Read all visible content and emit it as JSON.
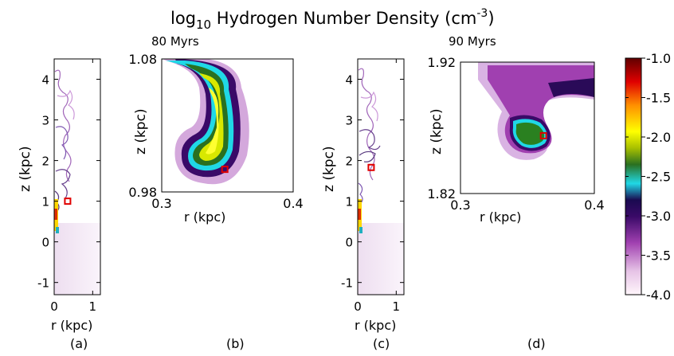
{
  "figure": {
    "title_base": "log",
    "title_sub": "10",
    "title_rest": " Hydrogen Number Density (cm",
    "title_sup": "-3",
    "title_close": ")"
  },
  "colorbar": {
    "ticks": [
      "-1.0",
      "-1.5",
      "-2.0",
      "-2.5",
      "-3.0",
      "-3.5",
      "-4.0"
    ],
    "range": [
      -4.0,
      -1.0
    ],
    "colors": [
      "#fff6fb",
      "#e6c3e6",
      "#a040b0",
      "#3a0a68",
      "#20d8e6",
      "#2a7020",
      "#c8d000",
      "#ffff00",
      "#ff9000",
      "#e00000",
      "#600000"
    ]
  },
  "chart_data": [
    {
      "type": "heatmap",
      "panel_label": "(a)",
      "xlabel": "r (kpc)",
      "ylabel": "z (kpc)",
      "x_ticks": [
        "0",
        "1"
      ],
      "y_ticks": [
        "4",
        "3",
        "2",
        "1",
        "0",
        "-1"
      ],
      "xlim": [
        0,
        1.2
      ],
      "ylim": [
        -1.3,
        4.5
      ],
      "marker": {
        "r": 0.35,
        "z": 1.0
      }
    },
    {
      "type": "heatmap",
      "panel_label": "(b)",
      "time_label": "80 Myrs",
      "xlabel": "r (kpc)",
      "ylabel": "z (kpc)",
      "x_ticks": [
        "0.3",
        "0.4"
      ],
      "y_ticks": [
        "1.08",
        "0.98"
      ],
      "xlim": [
        0.3,
        0.4
      ],
      "ylim": [
        0.98,
        1.08
      ],
      "marker": {
        "r": 0.348,
        "z": 0.997
      }
    },
    {
      "type": "heatmap",
      "panel_label": "(c)",
      "xlabel": "r (kpc)",
      "ylabel": "z (kpc)",
      "x_ticks": [
        "0",
        "1"
      ],
      "y_ticks": [
        "4",
        "3",
        "2",
        "1",
        "0",
        "-1"
      ],
      "xlim": [
        0,
        1.2
      ],
      "ylim": [
        -1.3,
        4.5
      ],
      "marker": {
        "r": 0.35,
        "z": 1.83
      }
    },
    {
      "type": "heatmap",
      "panel_label": "(d)",
      "time_label": "90 Myrs",
      "xlabel": "r (kpc)",
      "ylabel": "z (kpc)",
      "x_ticks": [
        "0.3",
        "0.4"
      ],
      "y_ticks": [
        "1.92",
        "1.82"
      ],
      "xlim": [
        0.3,
        0.4
      ],
      "ylim": [
        1.82,
        1.92
      ],
      "marker": {
        "r": 0.362,
        "z": 1.864
      }
    }
  ]
}
